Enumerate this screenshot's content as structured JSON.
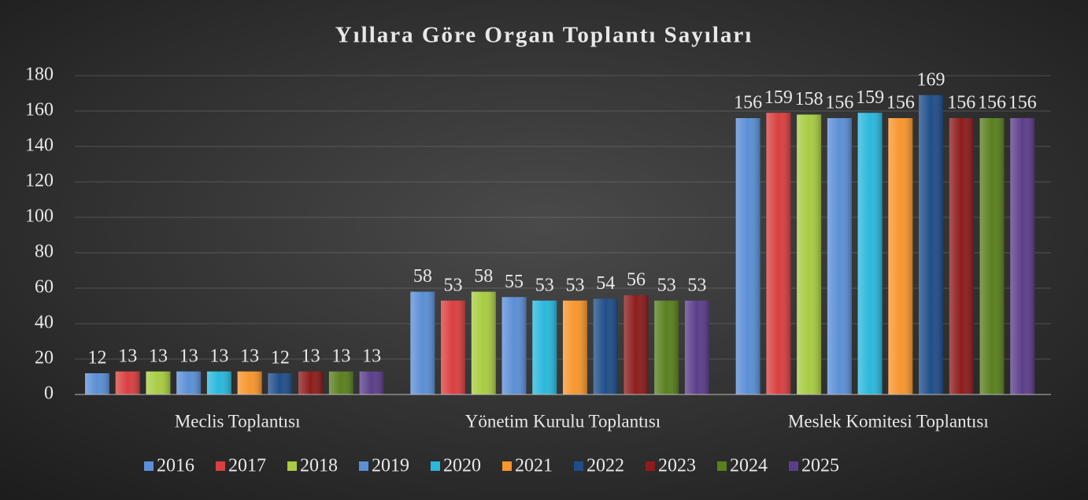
{
  "chart_data": {
    "type": "bar",
    "title": "Yıllara Göre Organ Toplantı Sayıları",
    "categories": [
      "Meclis Toplantısı",
      "Yönetim Kurulu Toplantısı",
      "Meslek Komitesi Toplantısı"
    ],
    "series": [
      {
        "name": "2016",
        "color": "#5b8fd6",
        "values": [
          12,
          58,
          156
        ]
      },
      {
        "name": "2017",
        "color": "#d94040",
        "values": [
          13,
          53,
          159
        ]
      },
      {
        "name": "2018",
        "color": "#a8cc42",
        "values": [
          13,
          58,
          158
        ]
      },
      {
        "name": "2019",
        "color": "#5b8fd6",
        "values": [
          13,
          55,
          156
        ]
      },
      {
        "name": "2020",
        "color": "#2bb8dc",
        "values": [
          13,
          53,
          159
        ]
      },
      {
        "name": "2021",
        "color": "#f7962e",
        "values": [
          13,
          53,
          156
        ]
      },
      {
        "name": "2022",
        "color": "#1f4e89",
        "values": [
          12,
          54,
          169
        ]
      },
      {
        "name": "2023",
        "color": "#8e1c1c",
        "values": [
          13,
          56,
          156
        ]
      },
      {
        "name": "2024",
        "color": "#5a7f1f",
        "values": [
          13,
          53,
          156
        ]
      },
      {
        "name": "2025",
        "color": "#5b3e8a",
        "values": [
          13,
          53,
          156
        ]
      }
    ],
    "ylim": [
      0,
      180
    ],
    "yticks": [
      0,
      20,
      40,
      60,
      80,
      100,
      120,
      140,
      160,
      180
    ],
    "grid": true,
    "legend": "bottom"
  }
}
